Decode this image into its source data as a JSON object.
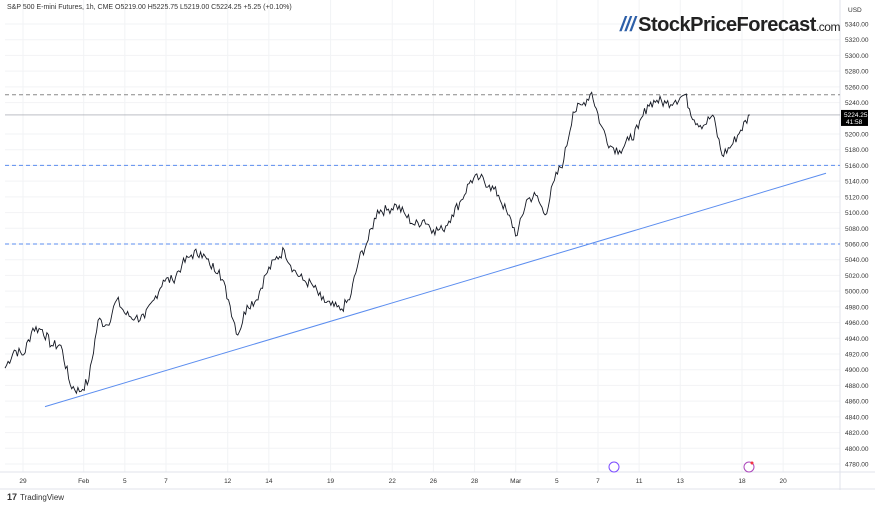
{
  "header": {
    "text": "S&P 500 E-mini Futures, 1h, CME  O5219.00  H5225.75  L5219.00  C5224.25  +5.25 (+0.10%)"
  },
  "logo": {
    "name": "StockPriceForecast",
    "suffix": ".com"
  },
  "brand": {
    "icon": "tradingview-logo",
    "name": "TradingView"
  },
  "colors": {
    "price": "#131722",
    "support": "#5b8def",
    "resistance": "#888888",
    "trend": "#5b8def",
    "label_bg": "#000000"
  },
  "chart_data": {
    "type": "line",
    "title": "",
    "currency": "USD",
    "ylim": [
      4770,
      5350
    ],
    "yticks": [
      5340,
      5320,
      5300,
      5280,
      5260,
      5240,
      5200,
      5180,
      5160,
      5140,
      5120,
      5100,
      5080,
      5060,
      5040,
      5020,
      5000,
      4980,
      4960,
      4940,
      4920,
      4900,
      4880,
      4860,
      4840,
      4820,
      4800,
      4780
    ],
    "x_labels": [
      {
        "label": "29",
        "at": 0.05
      },
      {
        "label": "Feb",
        "at": 3
      },
      {
        "label": "5",
        "at": 5
      },
      {
        "label": "7",
        "at": 7
      },
      {
        "label": "12",
        "at": 10
      },
      {
        "label": "14",
        "at": 12
      },
      {
        "label": "19",
        "at": 15
      },
      {
        "label": "22",
        "at": 18
      },
      {
        "label": "26",
        "at": 20
      },
      {
        "label": "28",
        "at": 22
      },
      {
        "label": "Mar",
        "at": 24
      },
      {
        "label": "5",
        "at": 26
      },
      {
        "label": "7",
        "at": 28
      },
      {
        "label": "11",
        "at": 30
      },
      {
        "label": "13",
        "at": 32
      },
      {
        "label": "18",
        "at": 35
      },
      {
        "label": "20",
        "at": 37
      }
    ],
    "prices": [
      4902,
      4925,
      4919,
      4953,
      4951,
      4931,
      4931,
      4881,
      4872,
      4887,
      4963,
      4957,
      4989,
      4970,
      4966,
      4966,
      4989,
      5014,
      5014,
      5033,
      5046,
      5050,
      5033,
      5027,
      4989,
      4944,
      4982,
      4989,
      5021,
      5040,
      5052,
      5027,
      5014,
      5008,
      4989,
      4982,
      4976,
      4989,
      5040,
      5065,
      5103,
      5103,
      5110,
      5097,
      5084,
      5091,
      5078,
      5078,
      5097,
      5116,
      5141,
      5144,
      5135,
      5122,
      5097,
      5071,
      5116,
      5122,
      5097,
      5141,
      5167,
      5228,
      5237,
      5253,
      5211,
      5185,
      5179,
      5192,
      5207,
      5237,
      5243,
      5239,
      5243,
      5250,
      5218,
      5211,
      5224,
      5173,
      5185,
      5205,
      5224.25
    ],
    "current_price": {
      "value": "5224.25",
      "countdown": "41:58"
    },
    "horizontal_lines": [
      {
        "price": 5250,
        "style": "dashed",
        "kind": "resistance"
      },
      {
        "price": 5160,
        "style": "dashed",
        "kind": "support"
      },
      {
        "price": 5060,
        "style": "dashed",
        "kind": "support"
      }
    ],
    "trend_line": {
      "from": 4853,
      "to": 5150
    },
    "event_icons": [
      {
        "icon": "dividend-icon",
        "near": "8 Mar"
      },
      {
        "icon": "lightning-icon",
        "near": "18 Mar"
      }
    ]
  }
}
